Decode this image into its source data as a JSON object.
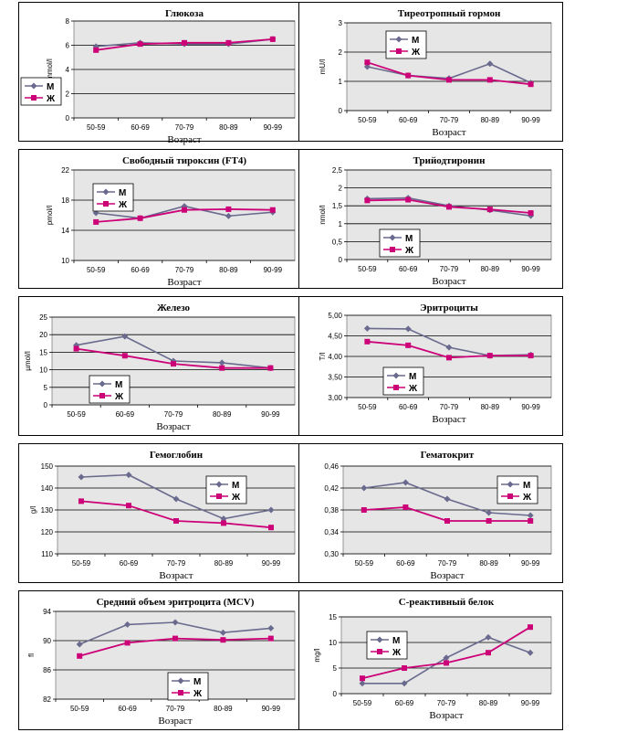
{
  "colors": {
    "male": "#6a6a8e",
    "female": "#cc0077",
    "plot_bg": "#e6e6e6"
  },
  "legend": {
    "male": "М",
    "female": "Ж"
  },
  "xlabel": "Возраст",
  "chart_data": [
    {
      "type": "line",
      "title": "Глюкоза",
      "ylabel": "mmol/l",
      "categories": [
        "50-59",
        "60-69",
        "70-79",
        "80-89",
        "90-99"
      ],
      "ylim": [
        0,
        8
      ],
      "yticks": [
        "0",
        "2",
        "4",
        "6",
        "8"
      ],
      "series": [
        {
          "name": "М",
          "values": [
            5.9,
            6.2,
            6.1,
            6.1,
            6.5
          ]
        },
        {
          "name": "Ж",
          "values": [
            5.6,
            6.1,
            6.2,
            6.2,
            6.5
          ]
        }
      ],
      "legend_position": "bottom-left"
    },
    {
      "type": "line",
      "title": "Тиреотропный гормон",
      "ylabel": "mU/l",
      "categories": [
        "50-59",
        "60-69",
        "70-79",
        "80-89",
        "90-99"
      ],
      "ylim": [
        0,
        3
      ],
      "yticks": [
        "0",
        "1",
        "2",
        "3"
      ],
      "series": [
        {
          "name": "М",
          "values": [
            1.5,
            1.2,
            1.1,
            1.6,
            0.95
          ]
        },
        {
          "name": "Ж",
          "values": [
            1.65,
            1.2,
            1.05,
            1.05,
            0.9
          ]
        }
      ],
      "legend_position": "top-center"
    },
    {
      "type": "line",
      "title": "Свободный тироксин (FT4)",
      "ylabel": "pmol/l",
      "categories": [
        "50-59",
        "60-69",
        "70-79",
        "80-89",
        "90-99"
      ],
      "ylim": [
        10,
        22
      ],
      "yticks": [
        "10",
        "14",
        "18",
        "22"
      ],
      "series": [
        {
          "name": "М",
          "values": [
            16.3,
            15.6,
            17.2,
            15.9,
            16.4
          ]
        },
        {
          "name": "Ж",
          "values": [
            15.1,
            15.6,
            16.7,
            16.8,
            16.7
          ]
        }
      ],
      "legend_position": "top-left"
    },
    {
      "type": "line",
      "title": "Трийодтиронин",
      "ylabel": "nmol/l",
      "categories": [
        "50-59",
        "60-69",
        "70-79",
        "80-89",
        "90-99"
      ],
      "ylim": [
        0,
        2.5
      ],
      "yticks": [
        "0",
        "0,5",
        "1",
        "1,5",
        "2",
        "2,5"
      ],
      "series": [
        {
          "name": "М",
          "values": [
            1.7,
            1.72,
            1.5,
            1.38,
            1.22
          ]
        },
        {
          "name": "Ж",
          "values": [
            1.65,
            1.67,
            1.47,
            1.4,
            1.3
          ]
        }
      ],
      "legend_position": "bottom-left"
    },
    {
      "type": "line",
      "title": "Железо",
      "ylabel": "µmol/l",
      "categories": [
        "50-59",
        "60-69",
        "70-79",
        "80-89",
        "90-99"
      ],
      "ylim": [
        0,
        25
      ],
      "yticks": [
        "0",
        "5",
        "10",
        "15",
        "20",
        "25"
      ],
      "series": [
        {
          "name": "М",
          "values": [
            17,
            19.5,
            12.5,
            12,
            10.5
          ]
        },
        {
          "name": "Ж",
          "values": [
            16,
            14,
            11.7,
            10.5,
            10.5
          ]
        }
      ],
      "legend_position": "bottom-left"
    },
    {
      "type": "line",
      "title": "Эритроциты",
      "ylabel": "T/l",
      "categories": [
        "50-59",
        "60-69",
        "70-79",
        "80-89",
        "90-99"
      ],
      "ylim": [
        3.0,
        5.0
      ],
      "yticks": [
        "3,00",
        "3,50",
        "4,00",
        "4,50",
        "5,00"
      ],
      "series": [
        {
          "name": "М",
          "values": [
            4.68,
            4.67,
            4.22,
            4.02,
            4.04
          ]
        },
        {
          "name": "Ж",
          "values": [
            4.36,
            4.27,
            3.97,
            4.02,
            4.02
          ]
        }
      ],
      "legend_position": "bottom-left"
    },
    {
      "type": "line",
      "title": "Гемоглобин",
      "ylabel": "g/l",
      "categories": [
        "50-59",
        "60-69",
        "70-79",
        "80-89",
        "90-99"
      ],
      "ylim": [
        110,
        150
      ],
      "yticks": [
        "110",
        "120",
        "130",
        "140",
        "150"
      ],
      "series": [
        {
          "name": "М",
          "values": [
            145,
            146,
            135,
            126,
            130
          ]
        },
        {
          "name": "Ж",
          "values": [
            134,
            132,
            125,
            124,
            122
          ]
        }
      ],
      "legend_position": "top-right"
    },
    {
      "type": "line",
      "title": "Гематокрит",
      "ylabel": "",
      "categories": [
        "50-59",
        "60-69",
        "70-79",
        "80-89",
        "90-99"
      ],
      "ylim": [
        0.3,
        0.46
      ],
      "yticks": [
        "0,30",
        "0,34",
        "0,38",
        "0,42",
        "0,46"
      ],
      "series": [
        {
          "name": "М",
          "values": [
            0.42,
            0.43,
            0.4,
            0.375,
            0.37
          ]
        },
        {
          "name": "Ж",
          "values": [
            0.38,
            0.385,
            0.36,
            0.36,
            0.36
          ]
        }
      ],
      "legend_position": "top-right"
    },
    {
      "type": "line",
      "title": "Средний объем эритроцита (MCV)",
      "ylabel": "fl",
      "categories": [
        "50-59",
        "60-69",
        "70-79",
        "80-89",
        "90-99"
      ],
      "ylim": [
        82,
        94
      ],
      "yticks": [
        "82",
        "86",
        "90",
        "94"
      ],
      "series": [
        {
          "name": "М",
          "values": [
            89.5,
            92.2,
            92.5,
            91.1,
            91.7
          ]
        },
        {
          "name": "Ж",
          "values": [
            87.9,
            89.7,
            90.3,
            90.1,
            90.3
          ]
        }
      ],
      "legend_position": "bottom-center"
    },
    {
      "type": "line",
      "title": "С-реактивный белок",
      "ylabel": "mg/l",
      "categories": [
        "50-59",
        "60-69",
        "70-79",
        "80-89",
        "90-99"
      ],
      "ylim": [
        0,
        15
      ],
      "yticks": [
        "0",
        "5",
        "10",
        "15"
      ],
      "series": [
        {
          "name": "М",
          "values": [
            2,
            2,
            7,
            11,
            8
          ]
        },
        {
          "name": "Ж",
          "values": [
            3,
            5,
            6,
            8,
            13
          ]
        }
      ],
      "legend_position": "top-left"
    }
  ]
}
